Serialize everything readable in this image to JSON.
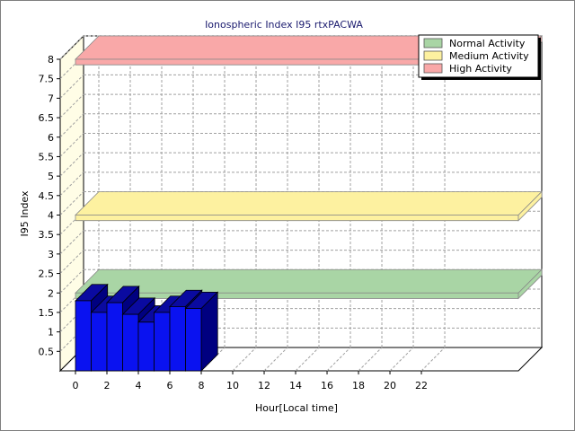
{
  "chart_data": {
    "type": "bar",
    "title": "Ionospheric Index I95 rtxPACWA",
    "xlabel": "Hour[Local time]",
    "ylabel": "I95 Index",
    "xlim": [
      0,
      24
    ],
    "ylim": [
      0,
      8
    ],
    "x_ticks": [
      "0",
      "2",
      "4",
      "6",
      "8",
      "10",
      "12",
      "14",
      "16",
      "18",
      "20",
      "22"
    ],
    "y_ticks": [
      "0.5",
      "1",
      "1.5",
      "2",
      "2.5",
      "3",
      "3.5",
      "4",
      "4.5",
      "5",
      "5.5",
      "6",
      "6.5",
      "7",
      "7.5",
      "8"
    ],
    "grid": true,
    "legend_position": "top-right",
    "bands": [
      {
        "name": "Normal Activity",
        "from": 1.95,
        "to": 2.0,
        "color": "#a9d5a5"
      },
      {
        "name": "Medium Activity",
        "from": 3.95,
        "to": 4.0,
        "color": "#fdf1a0"
      },
      {
        "name": "High Activity",
        "from": 7.95,
        "to": 8.0,
        "color": "#f9a8a8"
      }
    ],
    "series": [
      {
        "bar_color": "#0a12f0",
        "bar_top_color": "#0a0aa0",
        "bar_side_color": "#000080",
        "x": [
          0,
          1,
          2,
          3,
          4,
          5,
          6,
          7
        ],
        "values": [
          1.8,
          1.5,
          1.75,
          1.45,
          1.25,
          1.5,
          1.65,
          1.6
        ]
      }
    ]
  }
}
